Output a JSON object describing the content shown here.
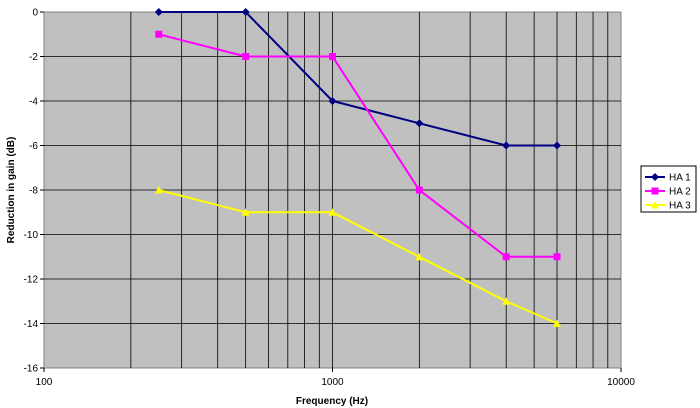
{
  "chart_data": {
    "type": "line",
    "xlabel": "Frequency (Hz)",
    "ylabel": "Reduction in gain (dB)",
    "x_scale": "log",
    "xlim": [
      100,
      10000
    ],
    "ylim": [
      -16,
      0
    ],
    "x_ticks": [
      "100",
      "1000",
      "10000"
    ],
    "y_ticks": [
      "0",
      "-2",
      "-4",
      "-6",
      "-8",
      "-10",
      "-12",
      "-14",
      "-16"
    ],
    "grid": true,
    "plot_background": "#c0c0c0",
    "legend_position": "right",
    "x": [
      250,
      500,
      1000,
      2000,
      4000,
      6000
    ],
    "series": [
      {
        "name": "HA 1",
        "color": "#000080",
        "marker": "diamond",
        "values": [
          0,
          0,
          -4,
          -5,
          -6,
          -6
        ]
      },
      {
        "name": "HA 2",
        "color": "#ff00ff",
        "marker": "square",
        "values": [
          -1,
          -2,
          -2,
          -8,
          -11,
          -11
        ]
      },
      {
        "name": "HA 3",
        "color": "#ffff00",
        "marker": "triangle",
        "values": [
          -8,
          -9,
          -9,
          -11,
          -13,
          -14
        ]
      }
    ]
  }
}
